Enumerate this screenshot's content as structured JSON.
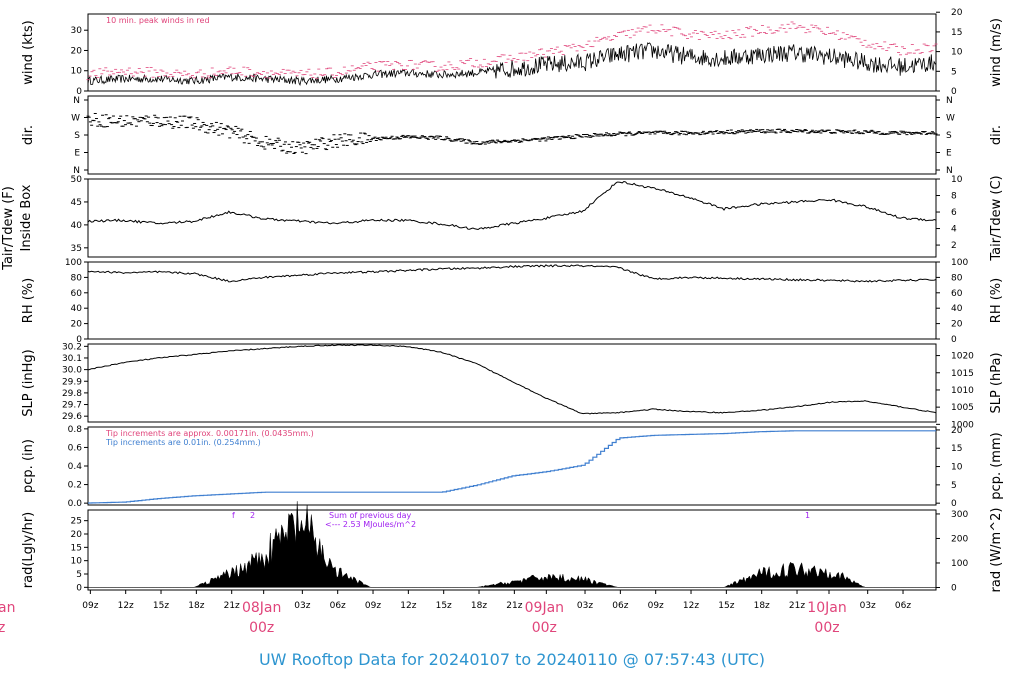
{
  "title": "UW Rooftop Data for 20240107  to  20240110 @ 07:57:43  (UTC)",
  "colors": {
    "peak": "#e0457b",
    "blue": "#3f7fd0",
    "purple": "#a020f0",
    "footer": "#2e95d0",
    "daylabel": "#e0457b"
  },
  "x_axis": {
    "hour_ticks": [
      "09z",
      "12z",
      "15z",
      "18z",
      "21z",
      "03z",
      "06z",
      "09z",
      "12z",
      "15z",
      "18z",
      "21z",
      "03z",
      "06z",
      "09z",
      "12z",
      "15z",
      "18z",
      "21z",
      "03z",
      "06z"
    ],
    "day_labels": [
      {
        "top": "08Jan",
        "bottom": "00z"
      },
      {
        "top": "09Jan",
        "bottom": "00z"
      },
      {
        "top": "10Jan",
        "bottom": "00z"
      }
    ],
    "left_cut_label": {
      "top": "an",
      "bottom": "z"
    }
  },
  "panels": {
    "wind": {
      "left_label": "wind (kts)",
      "right_label": "wind (m/s)",
      "left_ticks": [
        "0",
        "10",
        "20",
        "30"
      ],
      "right_ticks": [
        "0",
        "5",
        "10",
        "15",
        "20"
      ],
      "note": "10 min. peak winds in red"
    },
    "dir": {
      "left_label": "dir.",
      "right_label": "dir.",
      "left_ticks": [
        "N",
        "E",
        "S",
        "W",
        "N"
      ],
      "right_ticks": [
        "N",
        "E",
        "S",
        "W",
        "N"
      ]
    },
    "temp": {
      "left_label_1": "Tair/Tdew (F)",
      "left_label_2": "Inside Box",
      "right_label": "Tair/Tdew (C)",
      "left_ticks": [
        "35",
        "40",
        "45",
        "50"
      ],
      "right_ticks": [
        "2",
        "4",
        "6",
        "8",
        "10"
      ]
    },
    "rh": {
      "left_label": "RH (%)",
      "right_label": "RH (%)",
      "left_ticks": [
        "0",
        "20",
        "40",
        "60",
        "80",
        "100"
      ],
      "right_ticks": [
        "0",
        "20",
        "40",
        "60",
        "80",
        "100"
      ]
    },
    "slp": {
      "left_label": "SLP (inHg)",
      "right_label": "SLP (hPa)",
      "left_ticks": [
        "29.6",
        "29.7",
        "29.8",
        "29.9",
        "30.0",
        "30.1",
        "30.2"
      ],
      "right_ticks": [
        "1000",
        "1005",
        "1010",
        "1015",
        "1020"
      ]
    },
    "pcp": {
      "left_label": "pcp. (in)",
      "right_label": "pcp. (mm)",
      "left_ticks": [
        "0.0",
        "0.2",
        "0.4",
        "0.6",
        "0.8"
      ],
      "right_ticks": [
        "0",
        "5",
        "10",
        "15",
        "20"
      ],
      "note1": "Tip increments are approx. 0.00171in. (0.0435mm.)",
      "note2": "Tip increments are 0.01in. (0.254mm.)"
    },
    "rad": {
      "left_label": "rad(Lgly/hr)",
      "right_label": "rad (W/m^2)",
      "left_ticks": [
        "0",
        "5",
        "10",
        "15",
        "20",
        "25"
      ],
      "right_ticks": [
        "0",
        "100",
        "200",
        "300"
      ],
      "note1": "Sum of previous day",
      "note2": "<--- 2.53 MJoules/m^2",
      "marker_labels": [
        "f",
        "2",
        "1"
      ]
    }
  },
  "chart_data": [
    {
      "type": "line",
      "title": "",
      "ylabel": "wind (kts)",
      "ylim": [
        0,
        38
      ],
      "x_hours_from_09z_07jan": [
        0,
        3,
        6,
        9,
        12,
        15,
        18,
        21,
        24,
        27,
        30,
        33,
        36,
        39,
        42,
        45,
        48,
        51,
        54,
        57,
        60,
        63,
        66,
        69,
        72
      ],
      "series": [
        {
          "values": [
            5,
            6,
            6,
            5,
            7,
            6,
            5,
            6,
            8,
            9,
            8,
            9,
            11,
            13,
            14,
            18,
            20,
            17,
            16,
            18,
            19,
            17,
            14,
            12,
            14
          ]
        },
        {
          "name": "10 min. peak winds in red",
          "values": [
            8,
            10,
            9,
            8,
            10,
            9,
            8,
            9,
            12,
            13,
            12,
            14,
            16,
            19,
            22,
            27,
            31,
            28,
            27,
            30,
            32,
            29,
            24,
            20,
            22
          ]
        }
      ]
    },
    {
      "type": "scatter",
      "ylabel": "dir.",
      "categories_y": [
        "N",
        "E",
        "S",
        "W",
        "N"
      ],
      "x_hours_from_09z_07jan": [
        0,
        3,
        6,
        9,
        12,
        15,
        18,
        21,
        24,
        27,
        30,
        33,
        36,
        39,
        42,
        45,
        48,
        51,
        54,
        57,
        60,
        63,
        66,
        69,
        72
      ],
      "direction_deg": [
        260,
        250,
        255,
        240,
        200,
        140,
        110,
        150,
        160,
        170,
        165,
        140,
        150,
        160,
        175,
        185,
        190,
        190,
        195,
        200,
        200,
        198,
        195,
        190,
        192
      ]
    },
    {
      "type": "line",
      "ylabel": "Tair/Tdew (F)",
      "ylim": [
        33,
        50
      ],
      "x_hours_from_09z_07jan": [
        0,
        3,
        6,
        9,
        12,
        15,
        18,
        21,
        24,
        27,
        30,
        33,
        36,
        39,
        42,
        45,
        48,
        51,
        54,
        57,
        60,
        63,
        66,
        69,
        72
      ],
      "values": [
        40.8,
        41,
        40.3,
        40.8,
        42.8,
        41.3,
        40.8,
        40.3,
        41,
        41,
        40.2,
        39,
        40.3,
        41.5,
        43,
        49.5,
        48,
        46,
        43.5,
        44.5,
        45,
        45.5,
        44,
        41.5,
        41
      ]
    },
    {
      "type": "line",
      "ylabel": "RH (%)",
      "ylim": [
        0,
        100
      ],
      "x_hours_from_09z_07jan": [
        0,
        3,
        6,
        9,
        12,
        15,
        18,
        21,
        24,
        27,
        30,
        33,
        36,
        39,
        42,
        45,
        48,
        51,
        54,
        57,
        60,
        63,
        66,
        69,
        72
      ],
      "values": [
        88,
        86,
        87,
        85,
        75,
        80,
        83,
        86,
        87,
        89,
        91,
        92,
        94,
        95,
        95,
        93,
        78,
        80,
        79,
        78,
        77,
        76,
        75,
        76,
        77
      ]
    },
    {
      "type": "line",
      "ylabel": "SLP (inHg)",
      "ylim": [
        29.55,
        30.22
      ],
      "x_hours_from_09z_07jan": [
        0,
        3,
        6,
        9,
        12,
        15,
        18,
        21,
        24,
        27,
        30,
        33,
        36,
        39,
        42,
        45,
        48,
        51,
        54,
        57,
        60,
        63,
        66,
        69,
        72
      ],
      "values": [
        30.0,
        30.06,
        30.1,
        30.13,
        30.16,
        30.18,
        30.2,
        30.21,
        30.21,
        30.2,
        30.15,
        30.05,
        29.9,
        29.75,
        29.62,
        29.63,
        29.66,
        29.64,
        29.63,
        29.65,
        29.68,
        29.72,
        29.73,
        29.68,
        29.63
      ]
    },
    {
      "type": "line",
      "ylabel": "pcp. (in)",
      "ylim": [
        0,
        0.8
      ],
      "x_hours_from_09z_07jan": [
        0,
        3,
        6,
        9,
        12,
        15,
        18,
        21,
        24,
        27,
        30,
        33,
        36,
        39,
        42,
        45,
        48,
        51,
        54,
        57,
        60,
        63,
        66,
        69,
        72
      ],
      "values": [
        0,
        0.01,
        0.05,
        0.08,
        0.1,
        0.12,
        0.12,
        0.12,
        0.12,
        0.12,
        0.12,
        0.2,
        0.3,
        0.35,
        0.42,
        0.72,
        0.75,
        0.76,
        0.77,
        0.79,
        0.8,
        0.8,
        0.8,
        0.8,
        0.8
      ]
    },
    {
      "type": "area",
      "ylabel": "rad(Lgly/hr)",
      "ylim": [
        0,
        28
      ],
      "x_hours_from_09z_07jan": [
        0,
        3,
        6,
        9,
        12,
        15,
        18,
        21,
        24,
        27,
        30,
        33,
        36,
        39,
        42,
        45,
        48,
        51,
        54,
        57,
        60,
        63,
        66,
        69,
        72
      ],
      "values": [
        0,
        0,
        0,
        0,
        5,
        12,
        25,
        6,
        0,
        0,
        0,
        0,
        2,
        4,
        3,
        0,
        0,
        0,
        0,
        5,
        7,
        6,
        0,
        0,
        0
      ]
    }
  ]
}
